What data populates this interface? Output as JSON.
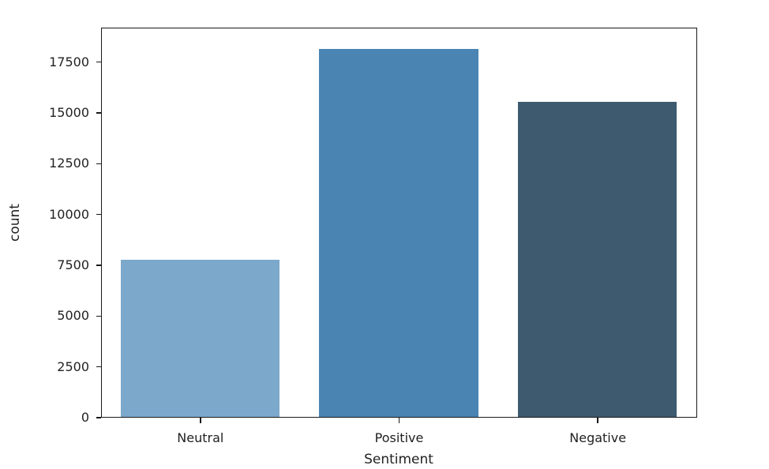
{
  "figure": {
    "background": "#ffffff",
    "axis_color": "#1a1a1a",
    "text_color": "#222222"
  },
  "chart_data": {
    "type": "bar",
    "title": "",
    "categories": [
      "Neutral",
      "Positive",
      "Negative"
    ],
    "values": [
      7750,
      18100,
      15500
    ],
    "bar_colors": [
      "#7CA8CB",
      "#4984B3",
      "#3D5A6E"
    ],
    "xlabel": "Sentiment",
    "ylabel": "count",
    "y_ticks": [
      0,
      2500,
      5000,
      7500,
      10000,
      12500,
      15000,
      17500
    ],
    "ylim": [
      0,
      19200
    ],
    "grid": false,
    "legend_position": "none",
    "bar_width_fraction": 0.8
  }
}
